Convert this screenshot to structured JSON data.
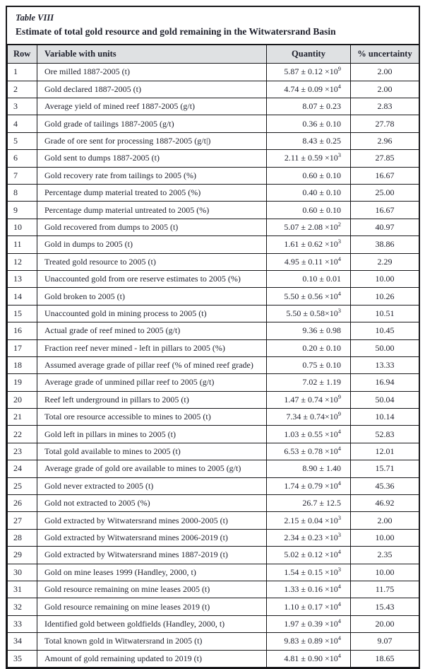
{
  "table": {
    "title": "Table VIII",
    "subtitle": "Estimate of total gold resource and gold remaining in the Witwatersrand Basin",
    "columns": [
      "Row",
      "Variable with units",
      "Quantity",
      "% uncertainty"
    ],
    "rows": [
      {
        "row": "1",
        "variable": "Ore milled 1887-2005 (t)",
        "quantity": "5.87 ± 0.12 ×10^9",
        "uncertainty": "2.00"
      },
      {
        "row": "2",
        "variable": "Gold declared 1887-2005 (t)",
        "quantity": "4.74 ± 0.09 ×10^4",
        "uncertainty": "2.00"
      },
      {
        "row": "3",
        "variable": "Average yield of mined reef 1887-2005 (g/t)",
        "quantity": "8.07 ± 0.23",
        "uncertainty": "2.83"
      },
      {
        "row": "4",
        "variable": "Gold grade of tailings 1887-2005 (g/t)",
        "quantity": "0.36 ± 0.10",
        "uncertainty": "27.78"
      },
      {
        "row": "5",
        "variable": "Grade of ore sent for processing 1887-2005 (g/t|)",
        "quantity": "8.43 ± 0.25",
        "uncertainty": "2.96"
      },
      {
        "row": "6",
        "variable": "Gold sent to dumps 1887-2005 (t)",
        "quantity": "2.11 ± 0.59 ×10^3",
        "uncertainty": "27.85"
      },
      {
        "row": "7",
        "variable": "Gold recovery rate from tailings to 2005 (%)",
        "quantity": "0.60 ± 0.10",
        "uncertainty": "16.67"
      },
      {
        "row": "8",
        "variable": "Percentage dump material treated to 2005 (%)",
        "quantity": "0.40 ± 0.10",
        "uncertainty": "25.00"
      },
      {
        "row": "9",
        "variable": "Percentage dump material untreated to 2005 (%)",
        "quantity": "0.60 ± 0.10",
        "uncertainty": "16.67"
      },
      {
        "row": "10",
        "variable": "Gold recovered from dumps to 2005 (t)",
        "quantity": "5.07 ± 2.08 ×10^2",
        "uncertainty": "40.97"
      },
      {
        "row": "11",
        "variable": "Gold in dumps to 2005 (t)",
        "quantity": "1.61 ± 0.62 ×10^3",
        "uncertainty": "38.86"
      },
      {
        "row": "12",
        "variable": "Treated gold resource to 2005 (t)",
        "quantity": "4.95 ± 0.11 ×10^4",
        "uncertainty": "2.29"
      },
      {
        "row": "13",
        "variable": "Unaccounted gold from ore reserve estimates to 2005 (%)",
        "quantity": "0.10 ± 0.01",
        "uncertainty": "10.00"
      },
      {
        "row": "14",
        "variable": "Gold broken to 2005 (t)",
        "quantity": "5.50 ± 0.56 ×10^4",
        "uncertainty": "10.26"
      },
      {
        "row": "15",
        "variable": "Unaccounted gold in mining process to 2005 (t)",
        "quantity": "5.50 ± 0.58×10^3",
        "uncertainty": "10.51"
      },
      {
        "row": "16",
        "variable": "Actual grade of reef mined to 2005 (g/t)",
        "quantity": "9.36 ± 0.98",
        "uncertainty": "10.45"
      },
      {
        "row": "17",
        "variable": "Fraction reef never mined - left in pillars to 2005 (%)",
        "quantity": "0.20 ± 0.10",
        "uncertainty": "50.00"
      },
      {
        "row": "18",
        "variable": "Assumed average grade of pillar reef (% of mined reef grade)",
        "quantity": "0.75 ± 0.10",
        "uncertainty": "13.33"
      },
      {
        "row": "19",
        "variable": "Average grade of unmined pillar reef to 2005 (g/t)",
        "quantity": "7.02 ± 1.19",
        "uncertainty": "16.94"
      },
      {
        "row": "20",
        "variable": "Reef left underground in pillars to 2005 (t)",
        "quantity": "1.47 ± 0.74 ×10^9",
        "uncertainty": "50.04"
      },
      {
        "row": "21",
        "variable": "Total ore resource accessible to mines to 2005 (t)",
        "quantity": "7.34 ± 0.74×10^9",
        "uncertainty": "10.14"
      },
      {
        "row": "22",
        "variable": "Gold left in pillars in mines to 2005 (t)",
        "quantity": "1.03 ± 0.55 ×10^4",
        "uncertainty": "52.83"
      },
      {
        "row": "23",
        "variable": "Total gold available to mines to 2005 (t)",
        "quantity": "6.53 ± 0.78 ×10^4",
        "uncertainty": "12.01"
      },
      {
        "row": "24",
        "variable": "Average grade of gold ore available to mines to 2005 (g/t)",
        "quantity": "8.90 ± 1.40",
        "uncertainty": "15.71"
      },
      {
        "row": "25",
        "variable": "Gold never extracted to 2005 (t)",
        "quantity": "1.74 ± 0.79 ×10^4",
        "uncertainty": "45.36"
      },
      {
        "row": "26",
        "variable": "Gold not extracted to 2005 (%)",
        "quantity": "26.7 ± 12.5",
        "uncertainty": "46.92"
      },
      {
        "row": "27",
        "variable": "Gold extracted by Witwatersrand mines 2000-2005 (t)",
        "quantity": "2.15 ± 0.04 ×10^3",
        "uncertainty": "2.00"
      },
      {
        "row": "28",
        "variable": "Gold extracted by Witwatersrand mines 2006-2019 (t)",
        "quantity": "2.34 ± 0.23 ×10^3",
        "uncertainty": "10.00"
      },
      {
        "row": "29",
        "variable": "Gold extracted by Witwatersrand mines 1887-2019 (t)",
        "quantity": "5.02 ± 0.12 ×10^4",
        "uncertainty": "2.35"
      },
      {
        "row": "30",
        "variable": "Gold on mine leases 1999 (Handley, 2000, t)",
        "quantity": "1.54 ± 0.15 ×10^3",
        "uncertainty": "10.00"
      },
      {
        "row": "31",
        "variable": "Gold resource remaining on mine leases 2005 (t)",
        "quantity": "1.33 ± 0.16 ×10^4",
        "uncertainty": "11.75"
      },
      {
        "row": "32",
        "variable": "Gold resource remaining on mine leases 2019 (t)",
        "quantity": "1.10 ± 0.17 ×10^4",
        "uncertainty": "15.43"
      },
      {
        "row": "33",
        "variable": "Identified gold between goldfields (Handley, 2000, t)",
        "quantity": "1.97 ± 0.39 ×10^4",
        "uncertainty": "20.00"
      },
      {
        "row": "34",
        "variable": "Total known gold in Witwatersrand in 2005 (t)",
        "quantity": "9.83 ± 0.89 ×10^4",
        "uncertainty": "9.07"
      },
      {
        "row": "35",
        "variable": "Amount of gold remaining updated to 2019 (t)",
        "quantity": "4.81 ± 0.90 ×10^4",
        "uncertainty": "18.65"
      }
    ]
  },
  "colors": {
    "header_bg": "#dfe1e3",
    "border": "#17171a",
    "text": "#20222e"
  }
}
